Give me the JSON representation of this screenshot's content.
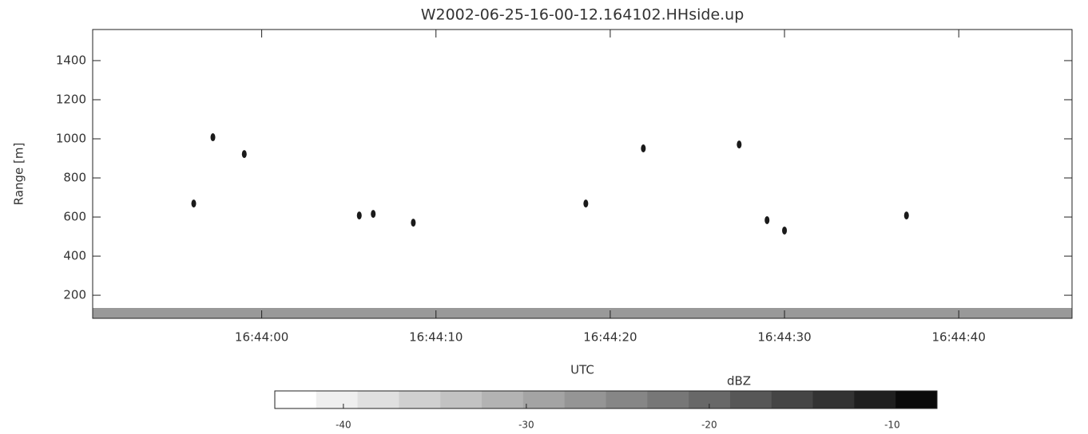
{
  "chart_data": {
    "type": "scatter",
    "title": "W2002-06-25-16-00-12.164102.HHside.up",
    "x_label": "UTC",
    "y_label": "Range [m]",
    "xlim": [
      60230.3,
      60286.5
    ],
    "xticks": [
      {
        "value": 60240,
        "label": "16:44:00"
      },
      {
        "value": 60250,
        "label": "16:44:10"
      },
      {
        "value": 60260,
        "label": "16:44:20"
      },
      {
        "value": 60270,
        "label": "16:44:30"
      },
      {
        "value": 60280,
        "label": "16:44:40"
      }
    ],
    "ylim": [
      82,
      1559
    ],
    "yticks": [
      200,
      400,
      600,
      800,
      1000,
      1200,
      1400
    ],
    "grid": false,
    "series": [
      {
        "color": "#1a1a1a",
        "x": [
          60237.2,
          60239.0,
          60236.1,
          60245.6,
          60246.4,
          60248.7,
          60258.6,
          60261.9,
          60267.4,
          60269.0,
          60270.0,
          60277.0
        ],
        "values": [
          1008,
          922,
          669,
          608,
          616,
          571,
          669,
          951,
          971,
          584,
          531,
          608
        ]
      }
    ],
    "colorbar": {
      "label": "dBZ",
      "lim": [
        -43.75,
        -7.55
      ],
      "ticks": [
        -40,
        -30,
        -20,
        -10
      ],
      "colors": [
        "#ffffff",
        "#efefef",
        "#e0e0e0",
        "#d0d0d0",
        "#c2c2c2",
        "#b3b3b3",
        "#a4a4a4",
        "#959595",
        "#868686",
        "#777777",
        "#686868",
        "#575757",
        "#454545",
        "#333333",
        "#1f1f1f",
        "#0a0a0a"
      ]
    }
  }
}
